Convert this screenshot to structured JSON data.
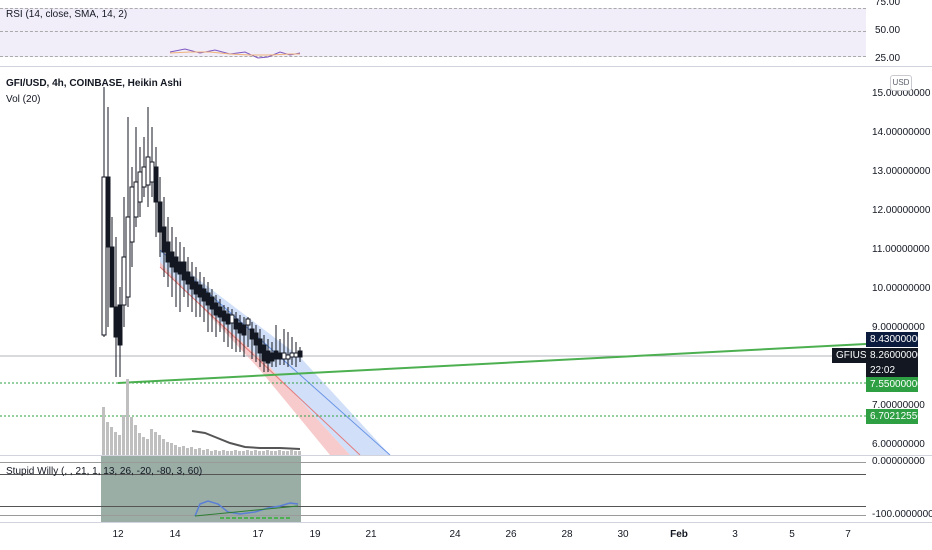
{
  "rsi": {
    "title": "RSI (14, close, SMA, 14, 2)",
    "axis_labels": [
      "75.00",
      "50.00",
      "25.00"
    ],
    "levels": [
      70,
      50,
      30
    ],
    "band_color": "#e1d9f3"
  },
  "main": {
    "title": "GFI/USD, 4h, COINBASE, Heikin Ashi",
    "volume_label": "Vol (20)",
    "currency_button": "USD",
    "axis_labels": [
      "15.00000000",
      "14.00000000",
      "13.00000000",
      "12.00000000",
      "11.00000000",
      "10.00000000",
      "9.00000000",
      "7.00000000",
      "6.00000000"
    ],
    "price_tags": {
      "green_line": {
        "value": "8.43000000",
        "color": "#0b1b3d"
      },
      "symbol": "GFIUSD",
      "last_price": {
        "value": "8.26000000",
        "color": "#131722"
      },
      "countdown": "22:02",
      "level_1": {
        "value": "7.55000000",
        "color": "#2ea043"
      },
      "level_2": {
        "value": "6.70212556",
        "color": "#2ea043"
      }
    },
    "colors": {
      "bull": "#ffffff",
      "bear": "#131722",
      "trendline": "#4caf50",
      "channel_upper": "#90b5ee",
      "channel_lower": "#f0a0a0"
    }
  },
  "oscillator": {
    "title": "Stupid Willy (, , 21, 1, 13, 26, -20, -80, 3, 60)",
    "axis_labels": [
      "0.00000000",
      "-100.00000000"
    ]
  },
  "time_axis": {
    "labels": [
      "12",
      "14",
      "17",
      "19",
      "21",
      "24",
      "26",
      "28",
      "30",
      "Feb",
      "3",
      "5",
      "7"
    ]
  }
}
